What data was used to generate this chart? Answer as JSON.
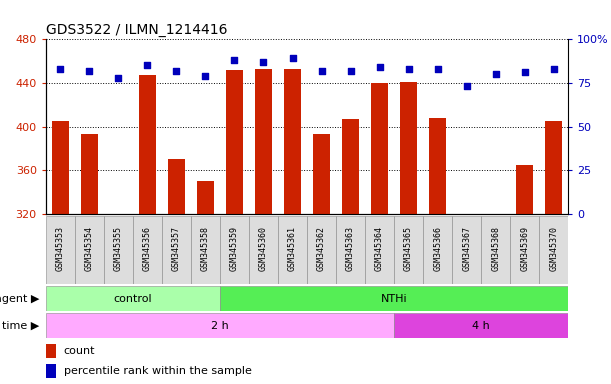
{
  "title": "GDS3522 / ILMN_1214416",
  "samples": [
    "GSM345353",
    "GSM345354",
    "GSM345355",
    "GSM345356",
    "GSM345357",
    "GSM345358",
    "GSM345359",
    "GSM345360",
    "GSM345361",
    "GSM345362",
    "GSM345363",
    "GSM345364",
    "GSM345365",
    "GSM345366",
    "GSM345367",
    "GSM345368",
    "GSM345369",
    "GSM345370"
  ],
  "counts": [
    405,
    393,
    320,
    447,
    370,
    350,
    452,
    453,
    453,
    393,
    407,
    440,
    441,
    408,
    320,
    320,
    365,
    405
  ],
  "percentile_ranks": [
    83,
    82,
    78,
    85,
    82,
    79,
    88,
    87,
    89,
    82,
    82,
    84,
    83,
    83,
    73,
    80,
    81,
    83
  ],
  "y_min": 320,
  "y_max": 480,
  "y_ticks": [
    320,
    360,
    400,
    440,
    480
  ],
  "y2_ticks": [
    0,
    25,
    50,
    75,
    100
  ],
  "bar_color": "#cc2200",
  "dot_color": "#0000bb",
  "agent_groups": [
    {
      "label": "control",
      "start": 0,
      "end": 5,
      "color": "#aaffaa"
    },
    {
      "label": "NTHi",
      "start": 6,
      "end": 17,
      "color": "#55ee55"
    }
  ],
  "time_groups": [
    {
      "label": "2 h",
      "start": 0,
      "end": 11,
      "color": "#ffaaff"
    },
    {
      "label": "4 h",
      "start": 12,
      "end": 17,
      "color": "#dd44dd"
    }
  ],
  "legend_count_label": "count",
  "legend_pct_label": "percentile rank within the sample",
  "bg_color": "#ffffff",
  "plot_bg_color": "#ffffff",
  "tick_color_left": "#cc2200",
  "tick_color_right": "#0000bb",
  "xtick_bg": "#dddddd"
}
